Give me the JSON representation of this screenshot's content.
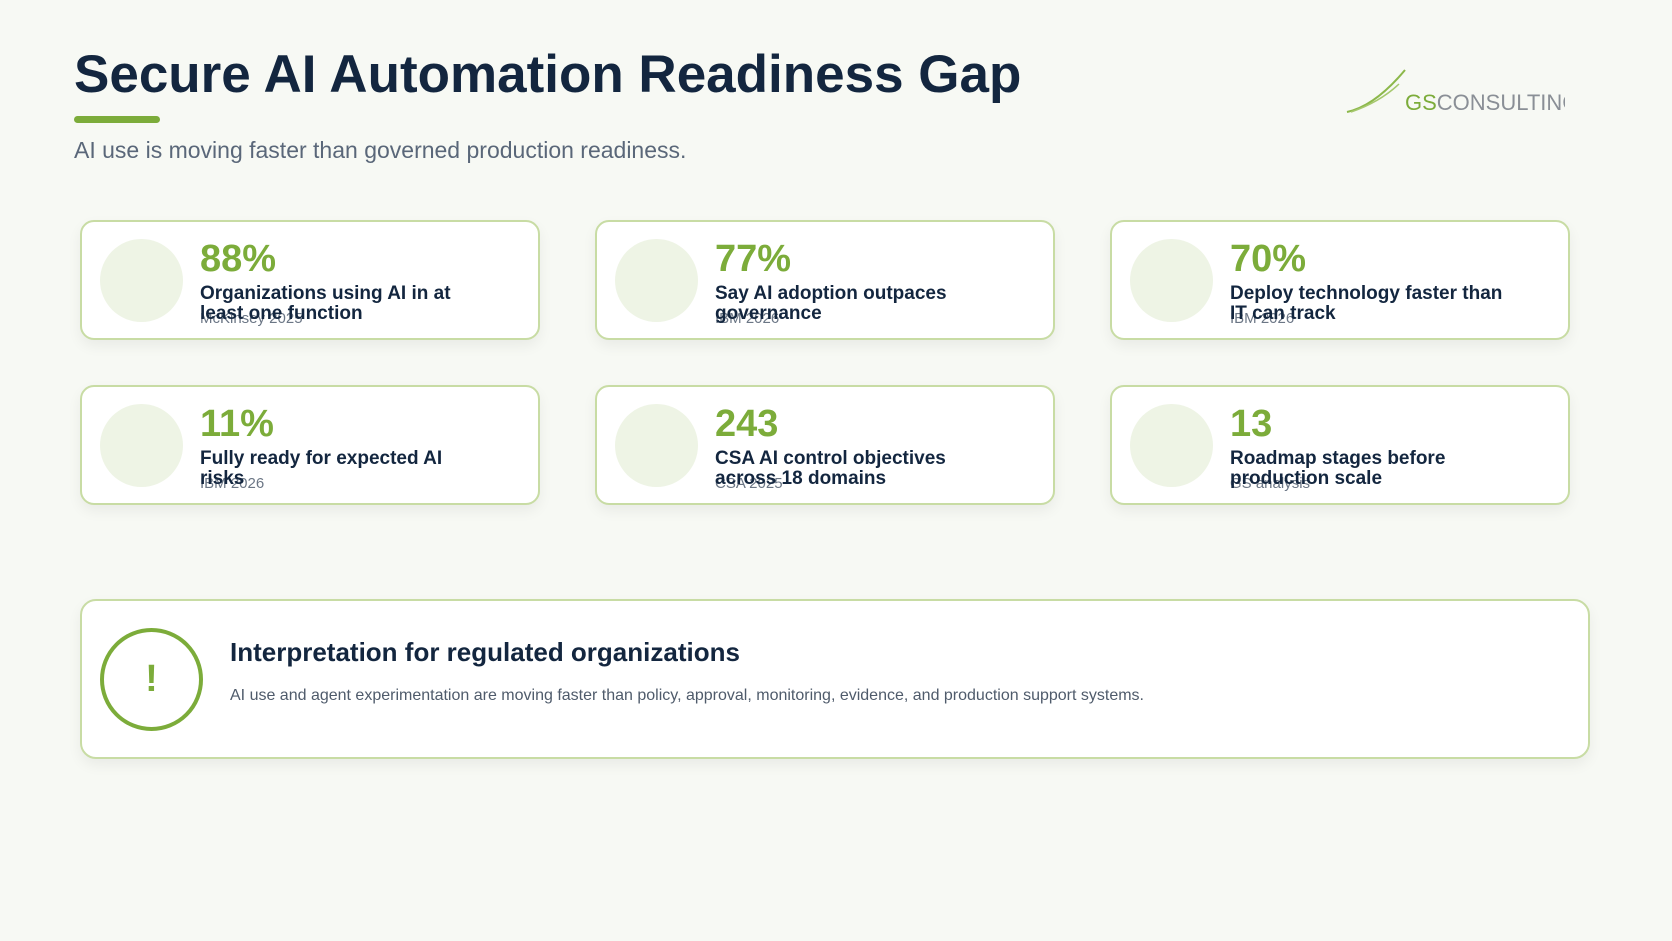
{
  "header": {
    "title": "Secure AI Automation Readiness Gap",
    "subtitle": "AI use is moving faster than governed production readiness."
  },
  "logo": {
    "brand": "GS",
    "name": "CONSULTING"
  },
  "stats": [
    {
      "value": "88%",
      "label": "Organizations using AI in at least one function",
      "source": "McKinsey 2025"
    },
    {
      "value": "77%",
      "label": "Say AI adoption outpaces governance",
      "source": "IBM 2026"
    },
    {
      "value": "70%",
      "label": "Deploy technology faster than IT can track",
      "source": "IBM 2026"
    },
    {
      "value": "11%",
      "label": "Fully ready for expected AI risks",
      "source": "IBM 2026"
    },
    {
      "value": "243",
      "label": "CSA AI control objectives across 18 domains",
      "source": "CSA 2025"
    },
    {
      "value": "13",
      "label": "Roadmap stages before production scale",
      "source": "GS analysis"
    }
  ],
  "callout": {
    "icon": "!",
    "title": "Interpretation for regulated organizations",
    "text": "AI use and agent experimentation are moving faster than policy, approval, monitoring, evidence, and production support systems."
  }
}
